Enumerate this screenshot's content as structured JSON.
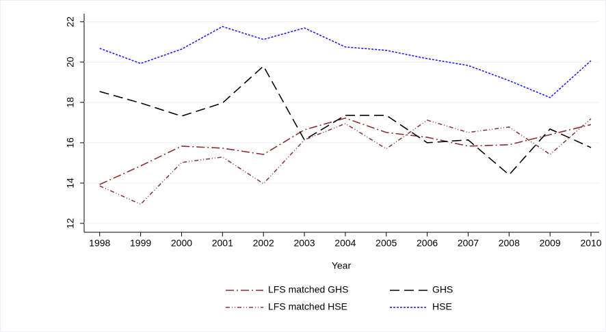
{
  "chart_data": {
    "type": "line",
    "x_label": "Year",
    "x": [
      1998,
      1999,
      2000,
      2001,
      2002,
      2003,
      2004,
      2005,
      2006,
      2007,
      2008,
      2009,
      2010
    ],
    "xlim": [
      1997.62,
      2010.2
    ],
    "xticks": [
      1998,
      1999,
      2000,
      2001,
      2002,
      2003,
      2004,
      2005,
      2006,
      2007,
      2008,
      2009,
      2010
    ],
    "ylim": [
      11.56,
      22.4
    ],
    "yticks": [
      12,
      14,
      16,
      18,
      20,
      22
    ],
    "grid": true,
    "legend": "bottom",
    "series": [
      {
        "name": "LFS matched GHS",
        "color": "#8b2e2e",
        "dash": "12,4,2,4",
        "values": [
          13.93,
          14.85,
          15.83,
          15.73,
          15.42,
          16.64,
          17.22,
          16.51,
          16.27,
          15.83,
          15.9,
          16.4,
          16.9
        ]
      },
      {
        "name": "GHS",
        "color": "#000000",
        "dash": "14,7",
        "values": [
          18.54,
          17.97,
          17.32,
          17.97,
          19.8,
          16.14,
          17.36,
          17.36,
          16.0,
          16.14,
          14.41,
          16.68,
          15.76
        ]
      },
      {
        "name": "LFS matched HSE",
        "color": "#8b3a3a",
        "dash": "6,3,1,3,1,3",
        "values": [
          13.86,
          12.95,
          15.02,
          15.29,
          13.97,
          16.14,
          16.95,
          15.7,
          17.12,
          16.51,
          16.78,
          15.42,
          17.19
        ]
      },
      {
        "name": "HSE",
        "color": "#1a1aff",
        "dash": "3,2",
        "values": [
          20.68,
          19.93,
          20.64,
          21.76,
          21.12,
          21.69,
          20.75,
          20.58,
          20.17,
          19.83,
          19.08,
          18.24,
          20.07
        ]
      }
    ]
  }
}
